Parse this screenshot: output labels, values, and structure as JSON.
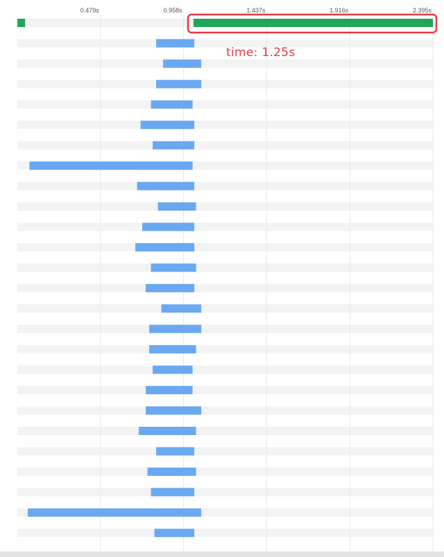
{
  "chart_data": {
    "type": "bar",
    "orientation": "horizontal-timeline",
    "x_unit": "s",
    "xlim": [
      0,
      2.395
    ],
    "x_ticks": [
      {
        "value": 0.479,
        "label": "0.479s"
      },
      {
        "value": 0.958,
        "label": "0.958s"
      },
      {
        "value": 1.437,
        "label": "1.437s"
      },
      {
        "value": 1.916,
        "label": "1.916s"
      },
      {
        "value": 2.395,
        "label": "2.395s"
      }
    ],
    "grid": true,
    "colors": {
      "highlight": "#22a559",
      "bar": "#6aa8f2",
      "annotation": "#e53945",
      "row_stripe": "#f3f3f3"
    },
    "highlight_bar": {
      "start": 1.015,
      "end": 2.395
    },
    "marker_bar": {
      "start": 0.0,
      "end": 0.045
    },
    "annotation": {
      "text": "time: 1.25s"
    },
    "bars": [
      {
        "start": 0.8,
        "end": 1.02
      },
      {
        "start": 0.84,
        "end": 1.06
      },
      {
        "start": 0.8,
        "end": 1.06
      },
      {
        "start": 0.77,
        "end": 1.01
      },
      {
        "start": 0.71,
        "end": 1.02
      },
      {
        "start": 0.78,
        "end": 1.02
      },
      {
        "start": 0.07,
        "end": 1.01
      },
      {
        "start": 0.69,
        "end": 1.02
      },
      {
        "start": 0.81,
        "end": 1.03
      },
      {
        "start": 0.72,
        "end": 1.02
      },
      {
        "start": 0.68,
        "end": 1.02
      },
      {
        "start": 0.77,
        "end": 1.03
      },
      {
        "start": 0.74,
        "end": 1.02
      },
      {
        "start": 0.83,
        "end": 1.06
      },
      {
        "start": 0.76,
        "end": 1.06
      },
      {
        "start": 0.76,
        "end": 1.03
      },
      {
        "start": 0.78,
        "end": 1.01
      },
      {
        "start": 0.74,
        "end": 1.01
      },
      {
        "start": 0.74,
        "end": 1.06
      },
      {
        "start": 0.7,
        "end": 1.03
      },
      {
        "start": 0.8,
        "end": 1.02
      },
      {
        "start": 0.75,
        "end": 1.03
      },
      {
        "start": 0.77,
        "end": 1.02
      },
      {
        "start": 0.06,
        "end": 1.06
      },
      {
        "start": 0.79,
        "end": 1.02
      }
    ]
  }
}
